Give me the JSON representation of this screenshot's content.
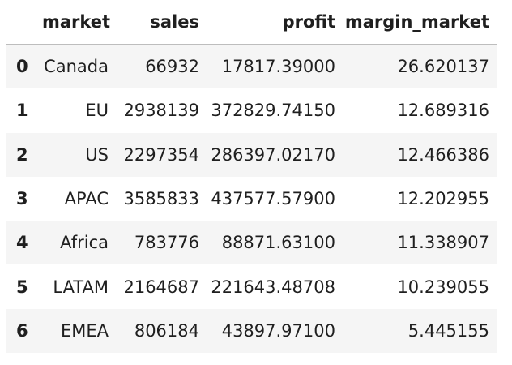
{
  "table": {
    "index_header": "",
    "columns": [
      "market",
      "sales",
      "profit",
      "margin_market"
    ],
    "rows": [
      {
        "index": "0",
        "market": "Canada",
        "sales": "66932",
        "profit": "17817.39000",
        "margin_market": "26.620137"
      },
      {
        "index": "1",
        "market": "EU",
        "sales": "2938139",
        "profit": "372829.74150",
        "margin_market": "12.689316"
      },
      {
        "index": "2",
        "market": "US",
        "sales": "2297354",
        "profit": "286397.02170",
        "margin_market": "12.466386"
      },
      {
        "index": "3",
        "market": "APAC",
        "sales": "3585833",
        "profit": "437577.57900",
        "margin_market": "12.202955"
      },
      {
        "index": "4",
        "market": "Africa",
        "sales": "783776",
        "profit": "88871.63100",
        "margin_market": "11.338907"
      },
      {
        "index": "5",
        "market": "LATAM",
        "sales": "2164687",
        "profit": "221643.48708",
        "margin_market": "10.239055"
      },
      {
        "index": "6",
        "market": "EMEA",
        "sales": "806184",
        "profit": "43897.97100",
        "margin_market": "5.445155"
      }
    ]
  },
  "colors": {
    "stripe": "#f5f5f5",
    "header_border": "#bdbdbd",
    "text": "#1f1f1f"
  }
}
